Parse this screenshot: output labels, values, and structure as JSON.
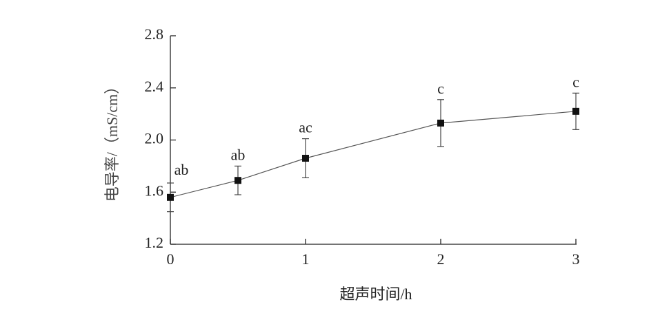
{
  "chart_data": {
    "type": "line",
    "x": [
      0,
      0.5,
      1,
      2,
      3
    ],
    "values": [
      1.56,
      1.69,
      1.86,
      2.13,
      2.22
    ],
    "errors": [
      0.11,
      0.11,
      0.15,
      0.18,
      0.14
    ],
    "annotations": [
      "ab",
      "ab",
      "ac",
      "c",
      "c"
    ],
    "color": "#555555",
    "xlabel": "超声时间/h",
    "ylabel": "电导率/（mS/cm）",
    "xlim": [
      0,
      3
    ],
    "xticks": [
      0,
      1,
      2,
      3
    ],
    "ylim": [
      1.2,
      2.8
    ],
    "yticks": [
      1.2,
      1.6,
      {
        "value": 2.0,
        "label": "2.0"
      },
      2.4,
      2.8
    ]
  }
}
